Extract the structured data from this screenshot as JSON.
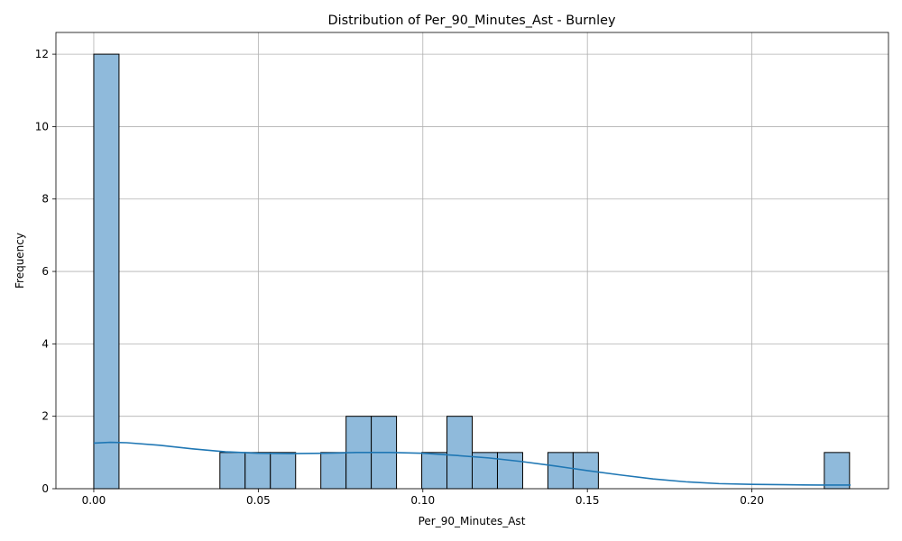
{
  "chart_data": {
    "type": "bar",
    "subtype": "histogram-with-kde",
    "title": "Distribution of Per_90_Minutes_Ast - Burnley",
    "xlabel": "Per_90_Minutes_Ast",
    "ylabel": "Frequency",
    "xlim": [
      -0.0115,
      0.2415
    ],
    "ylim": [
      0,
      12.6
    ],
    "x_ticks": [
      0.0,
      0.05,
      0.1,
      0.15,
      0.2
    ],
    "x_tick_labels": [
      "0.00",
      "0.05",
      "0.10",
      "0.15",
      "0.20"
    ],
    "y_ticks": [
      0,
      2,
      4,
      6,
      8,
      10,
      12
    ],
    "y_tick_labels": [
      "0",
      "2",
      "4",
      "6",
      "8",
      "10",
      "12"
    ],
    "grid": true,
    "bin_width": 0.00767,
    "bins": [
      {
        "start": 0.0,
        "count": 12
      },
      {
        "start": 0.03833,
        "count": 1
      },
      {
        "start": 0.046,
        "count": 1
      },
      {
        "start": 0.05367,
        "count": 1
      },
      {
        "start": 0.069,
        "count": 1
      },
      {
        "start": 0.07667,
        "count": 2
      },
      {
        "start": 0.08433,
        "count": 2
      },
      {
        "start": 0.09967,
        "count": 1
      },
      {
        "start": 0.10733,
        "count": 2
      },
      {
        "start": 0.115,
        "count": 1
      },
      {
        "start": 0.12267,
        "count": 1
      },
      {
        "start": 0.138,
        "count": 1
      },
      {
        "start": 0.14567,
        "count": 1
      },
      {
        "start": 0.222,
        "count": 1
      }
    ],
    "kde_curve": {
      "x": [
        0.0,
        0.005,
        0.01,
        0.02,
        0.03,
        0.04,
        0.05,
        0.06,
        0.07,
        0.08,
        0.09,
        0.1,
        0.11,
        0.12,
        0.13,
        0.14,
        0.15,
        0.16,
        0.17,
        0.18,
        0.19,
        0.2,
        0.21,
        0.22,
        0.23
      ],
      "y": [
        1.26,
        1.28,
        1.27,
        1.2,
        1.1,
        1.02,
        0.98,
        0.97,
        0.98,
        1.0,
        1.0,
        0.98,
        0.92,
        0.85,
        0.75,
        0.63,
        0.5,
        0.38,
        0.27,
        0.19,
        0.14,
        0.12,
        0.11,
        0.1,
        0.1
      ]
    },
    "colors": {
      "bar_fill": "#8fbadb",
      "bar_edge": "#000000",
      "kde_line": "#1f77b4",
      "grid": "#b0b0b0"
    }
  }
}
